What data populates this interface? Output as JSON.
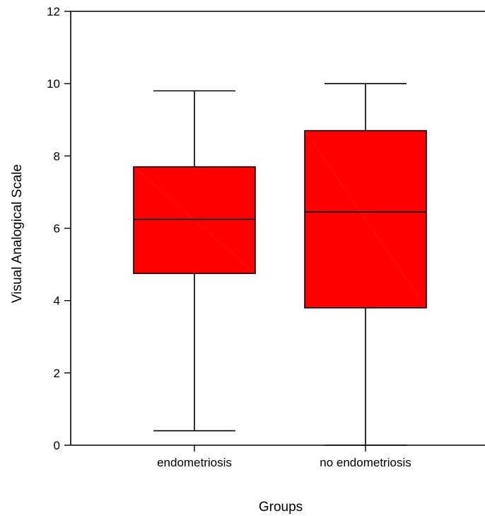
{
  "chart_data": {
    "type": "box",
    "title": "",
    "xlabel": "Groups",
    "ylabel": "Visual Analogical Scale",
    "ylim": [
      0,
      12
    ],
    "yticks": [
      0,
      2,
      4,
      6,
      8,
      10,
      12
    ],
    "grid": false,
    "legend": "none",
    "box_color": "#ff0000",
    "outline_color": "#000000",
    "categories": [
      "endometriosis",
      "no endometriosis"
    ],
    "boxes": [
      {
        "category": "endometriosis",
        "min": 0.4,
        "q1": 4.75,
        "median": 6.25,
        "q3": 7.7,
        "max": 9.8
      },
      {
        "category": "no endometriosis",
        "min": 0.0,
        "q1": 3.8,
        "median": 6.45,
        "q3": 8.7,
        "max": 10.0
      }
    ]
  }
}
